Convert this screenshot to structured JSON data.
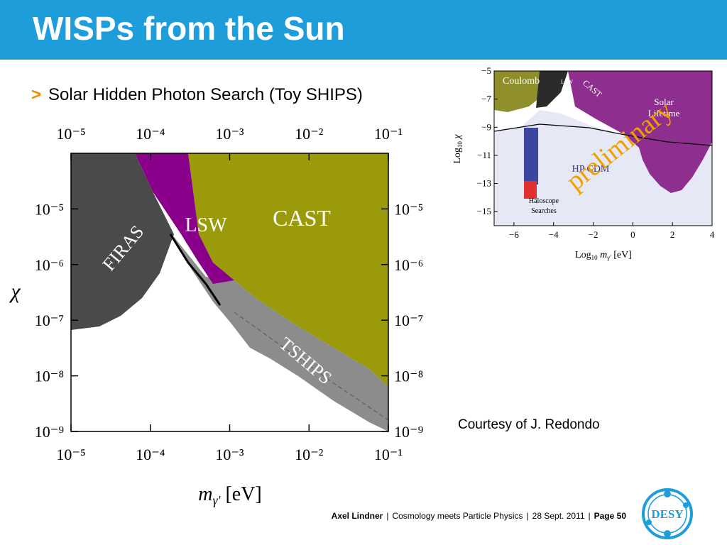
{
  "slide": {
    "title": "WISPs from the Sun",
    "bullet": "Solar Hidden Photon Search (Toy SHIPS)",
    "courtesy": "Courtesy of J. Redondo"
  },
  "footer": {
    "author": "Axel Lindner",
    "event": "Cosmology meets Particle Physics",
    "date": "28 Sept. 2011",
    "page": "Page 50"
  },
  "logo": {
    "text": "DESY"
  },
  "colors": {
    "header": "#1E9DDB",
    "accent": "#F18A00",
    "firas": "#4a4a4a",
    "lsw": "#8B008B",
    "cast": "#9A9A0A",
    "tships": "#8c8c8c"
  },
  "chart_data": [
    {
      "type": "area",
      "xlabel": "mγ' [eV]",
      "ylabel": "χ",
      "xscale": "log",
      "yscale": "log",
      "xlim": [
        1e-05,
        0.1
      ],
      "ylim": [
        1e-09,
        0.0001
      ],
      "x_tick_labels": [
        "10⁻⁵",
        "10⁻⁴",
        "10⁻³",
        "10⁻²",
        "10⁻¹"
      ],
      "y_tick_labels": [
        "10⁻⁵",
        "10⁻⁶",
        "10⁻⁷",
        "10⁻⁸",
        "10⁻⁹"
      ],
      "regions": [
        {
          "name": "FIRAS",
          "color": "#4a4a4a"
        },
        {
          "name": "LSW",
          "color": "#8B008B"
        },
        {
          "name": "CAST",
          "color": "#9A9A0A"
        },
        {
          "name": "TSHIPS",
          "color": "#8c8c8c"
        }
      ]
    },
    {
      "type": "area",
      "xlabel": "Log₁₀ mγ' [eV]",
      "ylabel": "Log₁₀ χ",
      "xlim": [
        -7,
        4
      ],
      "ylim": [
        -16,
        -5
      ],
      "x_tick_labels": [
        "−6",
        "−4",
        "−2",
        "0",
        "2",
        "4"
      ],
      "y_tick_labels": [
        "−5",
        "−7",
        "−9",
        "−11",
        "−13",
        "−15"
      ],
      "region_labels": [
        "Coulomb",
        "LSW",
        "CAST",
        "Solar Lifetime",
        "HP CDM",
        "Haloscope Searches"
      ],
      "watermark": "preliminary"
    }
  ]
}
